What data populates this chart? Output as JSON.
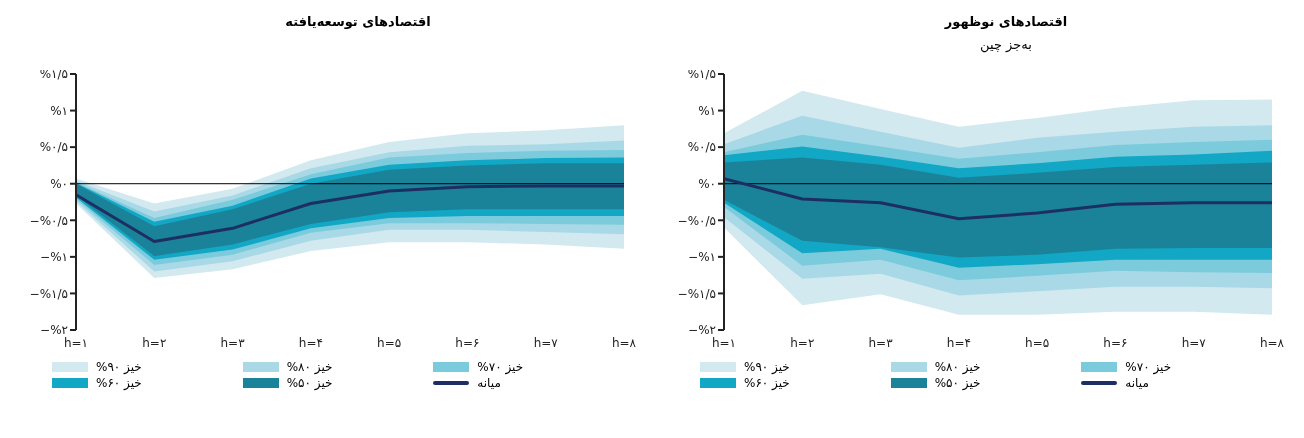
{
  "chart_data": [
    {
      "type": "line",
      "title": "اقتصادهای نوظهور",
      "subtitle": "به‌جز چین",
      "categories": [
        "h=۱",
        "h=۲",
        "h=۳",
        "h=۴",
        "h=۵",
        "h=۶",
        "h=۷",
        "h=۸"
      ],
      "series": [
        {
          "name": "خیز ۹۰%",
          "color": "#d3e9f0",
          "values": [
            null,
            null,
            null,
            null,
            null,
            null,
            null,
            null
          ],
          "lower": [
            -0.6,
            -1.66,
            -1.51,
            -1.79,
            -1.79,
            -1.75,
            -1.75,
            -1.79
          ],
          "upper": [
            0.69,
            1.27,
            1.02,
            0.78,
            0.9,
            1.04,
            1.14,
            1.15
          ]
        },
        {
          "name": "خیز ۸۰%",
          "color": "#a9d9e6",
          "values": [
            null,
            null,
            null,
            null,
            null,
            null,
            null,
            null
          ],
          "lower": [
            -0.46,
            -1.3,
            -1.23,
            -1.53,
            -1.47,
            -1.41,
            -1.41,
            -1.43
          ],
          "upper": [
            0.54,
            0.93,
            0.71,
            0.49,
            0.63,
            0.71,
            0.78,
            0.8
          ]
        },
        {
          "name": "خیز ۷۰%",
          "color": "#7ccbdc",
          "values": [
            null,
            null,
            null,
            null,
            null,
            null,
            null,
            null
          ],
          "lower": [
            -0.32,
            -1.12,
            -1.04,
            -1.32,
            -1.26,
            -1.19,
            -1.21,
            -1.22
          ],
          "upper": [
            0.43,
            0.67,
            0.51,
            0.34,
            0.43,
            0.53,
            0.57,
            0.6
          ]
        },
        {
          "name": "خیز ۶۰%",
          "color": "#12a7c4",
          "values": [
            null,
            null,
            null,
            null,
            null,
            null,
            null,
            null
          ],
          "lower": [
            -0.26,
            -0.95,
            -0.89,
            -1.15,
            -1.1,
            -1.04,
            -1.04,
            -1.04
          ],
          "upper": [
            0.39,
            0.51,
            0.37,
            0.21,
            0.28,
            0.37,
            0.4,
            0.45
          ]
        },
        {
          "name": "خیز ۵۰%",
          "color": "#1b8399",
          "values": [
            null,
            null,
            null,
            null,
            null,
            null,
            null,
            null
          ],
          "lower": [
            -0.22,
            -0.78,
            -0.87,
            -1.01,
            -0.97,
            -0.89,
            -0.88,
            -0.88
          ],
          "upper": [
            0.29,
            0.36,
            0.26,
            0.08,
            0.15,
            0.23,
            0.26,
            0.29
          ]
        },
        {
          "name": "میانه",
          "color": "#1d2f62",
          "values": [
            0.07,
            -0.21,
            -0.26,
            -0.48,
            -0.4,
            -0.28,
            -0.26,
            -0.26
          ]
        }
      ],
      "ylim": [
        -2,
        1.5
      ],
      "yticks": [
        {
          "value": -2,
          "label": "−%۲"
        },
        {
          "value": -1.5,
          "label": "−%۱/۵"
        },
        {
          "value": -1,
          "label": "−%۱"
        },
        {
          "value": -0.5,
          "label": "−%۰/۵"
        },
        {
          "value": 0,
          "label": "%۰"
        },
        {
          "value": 0.5,
          "label": "%۰/۵"
        },
        {
          "value": 1,
          "label": "%۱"
        },
        {
          "value": 1.5,
          "label": "%۱/۵"
        }
      ],
      "ref_lines": [
        {
          "axis": "y",
          "value": 0,
          "color": "#000000"
        }
      ],
      "legend": "bottom",
      "marker": "none",
      "line_style": "solid"
    },
    {
      "type": "line",
      "title": "اقتصادهای توسعه‌یافته",
      "categories": [
        "h=۱",
        "h=۲",
        "h=۳",
        "h=۴",
        "h=۵",
        "h=۶",
        "h=۷",
        "h=۸"
      ],
      "series": [
        {
          "name": "خیز ۹۰%",
          "color": "#d3e9f0",
          "values": [
            null,
            null,
            null,
            null,
            null,
            null,
            null,
            null
          ],
          "lower": [
            -0.27,
            -1.29,
            -1.17,
            -0.92,
            -0.8,
            -0.8,
            -0.83,
            -0.89
          ],
          "upper": [
            0.07,
            -0.27,
            -0.07,
            0.32,
            0.57,
            0.69,
            0.73,
            0.8
          ]
        },
        {
          "name": "خیز ۸۰%",
          "color": "#a9d9e6",
          "values": [
            null,
            null,
            null,
            null,
            null,
            null,
            null,
            null
          ],
          "lower": [
            -0.24,
            -1.2,
            -1.06,
            -0.78,
            -0.63,
            -0.63,
            -0.66,
            -0.69
          ],
          "upper": [
            0.04,
            -0.38,
            -0.16,
            0.21,
            0.43,
            0.52,
            0.54,
            0.59
          ]
        },
        {
          "name": "خیز ۷۰%",
          "color": "#7ccbdc",
          "values": [
            null,
            null,
            null,
            null,
            null,
            null,
            null,
            null
          ],
          "lower": [
            -0.21,
            -1.11,
            -0.97,
            -0.67,
            -0.54,
            -0.54,
            -0.55,
            -0.56
          ],
          "upper": [
            0.02,
            -0.47,
            -0.22,
            0.13,
            0.36,
            0.42,
            0.45,
            0.46
          ]
        },
        {
          "name": "خیز ۶۰%",
          "color": "#12a7c4",
          "values": [
            null,
            null,
            null,
            null,
            null,
            null,
            null,
            null
          ],
          "lower": [
            -0.19,
            -1.04,
            -0.9,
            -0.61,
            -0.47,
            -0.44,
            -0.44,
            -0.44
          ],
          "upper": [
            0.01,
            -0.52,
            -0.3,
            0.07,
            0.26,
            0.32,
            0.35,
            0.36
          ]
        },
        {
          "name": "خیز ۵۰%",
          "color": "#1b8399",
          "values": [
            null,
            null,
            null,
            null,
            null,
            null,
            null,
            null
          ],
          "lower": [
            -0.16,
            -0.99,
            -0.83,
            -0.55,
            -0.39,
            -0.35,
            -0.35,
            -0.35
          ],
          "upper": [
            0,
            -0.58,
            -0.35,
            0,
            0.19,
            0.25,
            0.28,
            0.28
          ]
        },
        {
          "name": "میانه",
          "color": "#1d2f62",
          "values": [
            -0.15,
            -0.79,
            -0.61,
            -0.27,
            -0.1,
            -0.04,
            -0.03,
            -0.03
          ]
        }
      ],
      "ylim": [
        -2,
        1.5
      ],
      "yticks": [
        {
          "value": -2,
          "label": "−%۲"
        },
        {
          "value": -1.5,
          "label": "−%۱/۵"
        },
        {
          "value": -1,
          "label": "−%۱"
        },
        {
          "value": -0.5,
          "label": "−%۰/۵"
        },
        {
          "value": 0,
          "label": "%۰"
        },
        {
          "value": 0.5,
          "label": "%۰/۵"
        },
        {
          "value": 1,
          "label": "%۱"
        },
        {
          "value": 1.5,
          "label": "%۱/۵"
        }
      ],
      "ref_lines": [
        {
          "axis": "y",
          "value": 0,
          "color": "#000000"
        }
      ],
      "legend": "bottom",
      "marker": "none",
      "line_style": "solid"
    }
  ]
}
